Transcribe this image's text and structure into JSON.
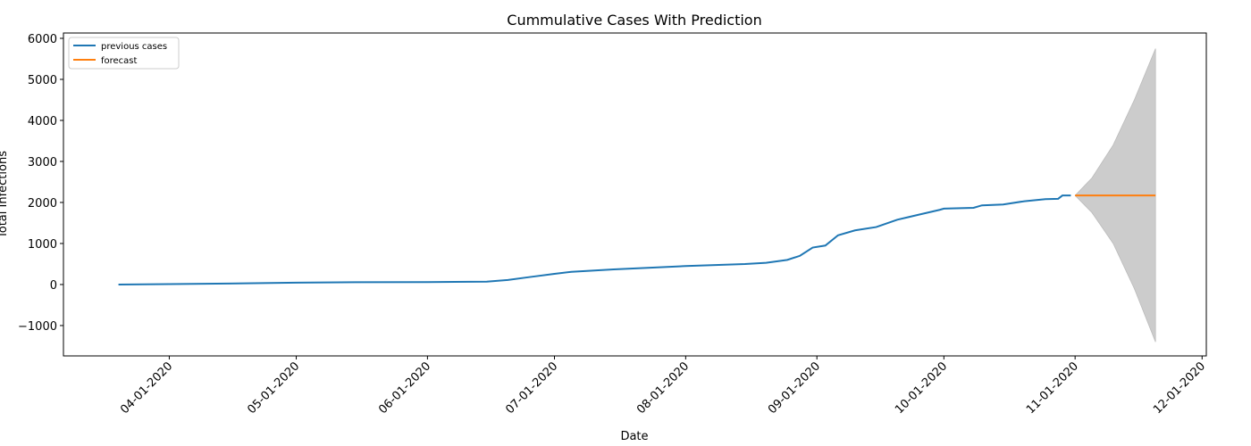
{
  "chart_data": {
    "type": "line",
    "title": "Cummulative Cases With Prediction",
    "x_label": "Date",
    "y_label": "Total Infections",
    "xlim": [
      "03-07-2020",
      "12-02-2020"
    ],
    "xticks": [
      "04-01-2020",
      "05-01-2020",
      "06-01-2020",
      "07-01-2020",
      "08-01-2020",
      "09-01-2020",
      "10-01-2020",
      "11-01-2020",
      "12-01-2020"
    ],
    "ylim": [
      -1740,
      6130
    ],
    "yticks": [
      -1000,
      0,
      1000,
      2000,
      3000,
      4000,
      5000,
      6000
    ],
    "yticks_labels": [
      "−1000",
      "0",
      "1000",
      "2000",
      "3000",
      "4000",
      "5000",
      "6000"
    ],
    "legend": "upper left",
    "series": [
      {
        "name": "previous cases",
        "color": "#1f77b4",
        "x": [
          "03-20-2020",
          "04-01-2020",
          "04-15-2020",
          "05-01-2020",
          "05-15-2020",
          "06-01-2020",
          "06-15-2020",
          "06-20-2020",
          "06-25-2020",
          "07-01-2020",
          "07-05-2020",
          "07-15-2020",
          "08-01-2020",
          "08-15-2020",
          "08-20-2020",
          "08-25-2020",
          "08-28-2020",
          "08-31-2020",
          "09-03-2020",
          "09-06-2020",
          "09-10-2020",
          "09-15-2020",
          "09-20-2020",
          "09-25-2020",
          "09-30-2020",
          "10-01-2020",
          "10-08-2020",
          "10-10-2020",
          "10-15-2020",
          "10-20-2020",
          "10-25-2020",
          "10-28-2020",
          "10-29-2020",
          "10-31-2020"
        ],
        "values": [
          0,
          10,
          25,
          45,
          55,
          60,
          70,
          110,
          180,
          260,
          310,
          370,
          450,
          500,
          530,
          600,
          700,
          900,
          950,
          1200,
          1320,
          1400,
          1580,
          1700,
          1820,
          1850,
          1870,
          1930,
          1950,
          2030,
          2080,
          2090,
          2170,
          2170
        ]
      },
      {
        "name": "forecast",
        "color": "#ff7f0e",
        "x": [
          "11-01-2020",
          "11-20-2020"
        ],
        "values": [
          2170,
          2170
        ]
      }
    ],
    "interval": {
      "color": "#cccccc",
      "x": [
        "11-01-2020",
        "11-05-2020",
        "11-10-2020",
        "11-15-2020",
        "11-20-2020"
      ],
      "upper": [
        2170,
        2600,
        3400,
        4500,
        5750
      ],
      "lower": [
        2170,
        1750,
        1000,
        -100,
        -1400
      ]
    }
  }
}
